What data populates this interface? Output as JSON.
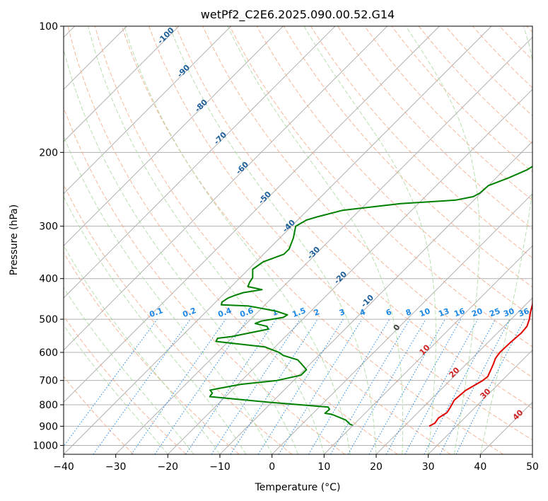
{
  "chart_data": {
    "type": "line",
    "title": "wetPf2_C2E6.2025.090.00.52.G14",
    "xlabel": "Temperature (°C)",
    "ylabel": "Pressure (hPa)",
    "xlim": [
      -40,
      50
    ],
    "ylim": [
      1050,
      100
    ],
    "x_ticks": [
      -40,
      -30,
      -20,
      -10,
      0,
      10,
      20,
      30,
      40,
      50
    ],
    "y_ticks": [
      1000,
      900,
      800,
      700,
      600,
      500,
      400,
      300,
      200,
      100
    ],
    "y_scale": "log",
    "colors": {
      "temperature": "#e00000",
      "dewpoint": "#008000",
      "isotherm": "#b0b0b0",
      "dry_adiabat": "#f4a582",
      "moist_adiabat": "#a6d79a",
      "mixing_ratio": "#1e88e5",
      "isotherm_label": "#1f5f9a",
      "moist_label": "#444444",
      "dry_label": "#cc2222"
    },
    "series": [
      {
        "name": "Temperature",
        "points": [
          [
            24.8,
            900
          ],
          [
            25.3,
            885
          ],
          [
            25.0,
            860
          ],
          [
            25.6,
            835
          ],
          [
            25.2,
            810
          ],
          [
            24.6,
            780
          ],
          [
            24.9,
            740
          ],
          [
            26.3,
            700
          ],
          [
            26.5,
            685
          ],
          [
            25.8,
            660
          ],
          [
            25.2,
            640
          ],
          [
            24.5,
            620
          ],
          [
            24.2,
            600
          ],
          [
            24.3,
            570
          ],
          [
            24.6,
            540
          ],
          [
            24.4,
            520
          ],
          [
            23.5,
            500
          ],
          [
            22.3,
            480
          ],
          [
            21.2,
            460
          ],
          [
            19.7,
            440
          ],
          [
            18.8,
            420
          ],
          [
            18.0,
            400
          ],
          [
            17.4,
            385
          ],
          [
            16.5,
            370
          ],
          [
            15.2,
            355
          ],
          [
            13.6,
            345
          ],
          [
            12.8,
            335
          ],
          [
            12.4,
            320
          ],
          [
            11.7,
            305
          ],
          [
            10.0,
            280
          ],
          [
            8.5,
            260
          ],
          [
            7.2,
            245
          ],
          [
            5.9,
            230
          ],
          [
            4.5,
            215
          ],
          [
            3.3,
            200
          ],
          [
            2.3,
            190
          ],
          [
            0.8,
            175
          ],
          [
            -0.7,
            160
          ],
          [
            -1.8,
            150
          ],
          [
            -2.8,
            140
          ],
          [
            -3.7,
            130
          ],
          [
            -4.8,
            122
          ],
          [
            -5.5,
            115
          ],
          [
            -6.3,
            108
          ],
          [
            -6.8,
            100
          ]
        ]
      },
      {
        "name": "Dewpoint",
        "points": [
          [
            9.9,
            895
          ],
          [
            9.2,
            890
          ],
          [
            7.6,
            870
          ],
          [
            3.8,
            843
          ],
          [
            2.3,
            838
          ],
          [
            2.4,
            820
          ],
          [
            1.7,
            810
          ],
          [
            -10.0,
            790
          ],
          [
            -23.0,
            765
          ],
          [
            -23.2,
            750
          ],
          [
            -24.2,
            738
          ],
          [
            -22.6,
            730
          ],
          [
            -19.4,
            715
          ],
          [
            -13.2,
            700
          ],
          [
            -9.6,
            680
          ],
          [
            -9.6,
            660
          ],
          [
            -11.6,
            640
          ],
          [
            -13.2,
            625
          ],
          [
            -16.8,
            610
          ],
          [
            -18.2,
            600
          ],
          [
            -22.0,
            582
          ],
          [
            -32.4,
            565
          ],
          [
            -32.7,
            555
          ],
          [
            -30.3,
            550
          ],
          [
            -27.8,
            540
          ],
          [
            -24.7,
            528
          ],
          [
            -25.5,
            520
          ],
          [
            -28.3,
            512
          ],
          [
            -27.6,
            505
          ],
          [
            -24.1,
            495
          ],
          [
            -23.8,
            488
          ],
          [
            -26.8,
            478
          ],
          [
            -30.5,
            470
          ],
          [
            -33.0,
            465
          ],
          [
            -38.4,
            462
          ],
          [
            -38.8,
            455
          ],
          [
            -38.4,
            445
          ],
          [
            -37.5,
            438
          ],
          [
            -36.5,
            432
          ],
          [
            -33.5,
            425
          ],
          [
            -36.8,
            418
          ],
          [
            -37.3,
            408
          ],
          [
            -37.6,
            398
          ],
          [
            -39.2,
            380
          ],
          [
            -38.6,
            365
          ],
          [
            -36.1,
            350
          ],
          [
            -36.1,
            340
          ],
          [
            -37.4,
            320
          ],
          [
            -39.2,
            300
          ],
          [
            -38.3,
            290
          ],
          [
            -36.9,
            285
          ],
          [
            -33.3,
            275
          ],
          [
            -23.4,
            265
          ],
          [
            -13.5,
            260
          ],
          [
            -10.8,
            255
          ],
          [
            -10.2,
            250
          ],
          [
            -10.0,
            240
          ],
          [
            -7.6,
            230
          ],
          [
            -5.6,
            220
          ],
          [
            -4.6,
            210
          ],
          [
            -3.8,
            200
          ],
          [
            -3.5,
            190
          ],
          [
            -3.6,
            180
          ],
          [
            -3.2,
            170
          ],
          [
            -2.3,
            160
          ],
          [
            -2.0,
            150
          ],
          [
            -2.0,
            142
          ],
          [
            -0.8,
            135
          ],
          [
            -0.8,
            125
          ],
          [
            -1.0,
            115
          ],
          [
            -1.3,
            108
          ],
          [
            -1.6,
            100
          ]
        ]
      }
    ],
    "isotherm_labels": [
      "-100",
      "-90",
      "-80",
      "-70",
      "-60",
      "-50",
      "-40",
      "-30",
      "-20",
      "-10"
    ],
    "mixing_ratio_labels": [
      "0.1",
      "0.2",
      "0.4",
      "0.6",
      "1",
      "1.5",
      "2",
      "3",
      "4",
      "6",
      "8",
      "10",
      "13",
      "16",
      "20",
      "25",
      "30",
      "36"
    ],
    "moist_adiabat_label": "0",
    "dry_adiabat_labels": [
      "10",
      "20",
      "30",
      "40"
    ]
  }
}
